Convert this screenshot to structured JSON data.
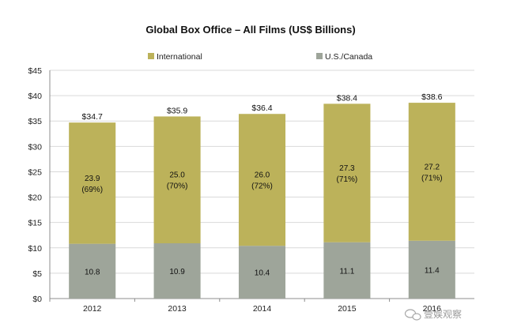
{
  "chart_data": {
    "type": "bar",
    "stacked": true,
    "title": "Global Box Office – All Films (US$ Billions)",
    "xlabel": "",
    "ylabel": "",
    "categories": [
      "2012",
      "2013",
      "2014",
      "2015",
      "2016"
    ],
    "series": [
      {
        "name": "U.S./Canada",
        "values": [
          10.8,
          10.9,
          10.4,
          11.1,
          11.4
        ],
        "labels": [
          "10.8",
          "10.9",
          "10.4",
          "11.1",
          "11.4"
        ],
        "color": "#9ea59a"
      },
      {
        "name": "International",
        "values": [
          23.9,
          25.0,
          26.0,
          27.3,
          27.2
        ],
        "labels": [
          "23.9",
          "25.0",
          "26.0",
          "27.3",
          "27.2"
        ],
        "share_labels": [
          "(69%)",
          "(70%)",
          "(72%)",
          "(71%)",
          "(71%)"
        ],
        "color": "#bcb25a"
      }
    ],
    "totals": [
      "$34.7",
      "$35.9",
      "$36.4",
      "$38.4",
      "$38.6"
    ],
    "ylim": [
      0,
      45
    ],
    "yticks": [
      "$0",
      "$5",
      "$10",
      "$15",
      "$20",
      "$25",
      "$30",
      "$35",
      "$40",
      "$45"
    ],
    "ytick_values": [
      0,
      5,
      10,
      15,
      20,
      25,
      30,
      35,
      40,
      45
    ],
    "grid": true,
    "legend": "top",
    "legend_items": [
      {
        "name": "International",
        "color": "#bcb25a"
      },
      {
        "name": "U.S./Canada",
        "color": "#9ea59a"
      }
    ]
  },
  "watermark": {
    "text": "壹娱观察",
    "icon": "wechat-bubble-icon"
  }
}
